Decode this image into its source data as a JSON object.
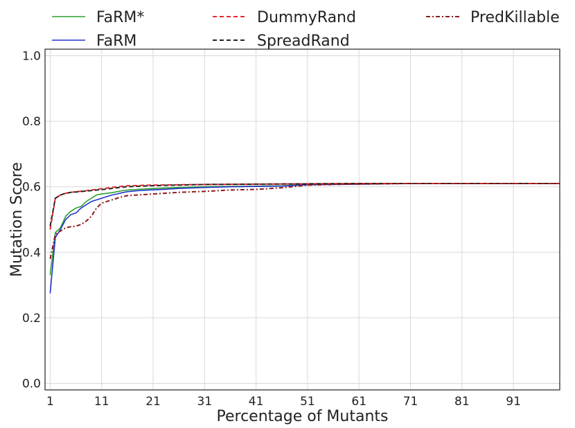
{
  "chart_data": {
    "type": "line",
    "xlabel": "Percentage of Mutants",
    "ylabel": "Mutation Score",
    "xlim": [
      0,
      100
    ],
    "ylim": [
      -0.02,
      1.02
    ],
    "x_ticks": [
      1,
      11,
      21,
      31,
      41,
      51,
      61,
      71,
      81,
      91
    ],
    "y_ticks": [
      0.0,
      0.2,
      0.4,
      0.6,
      0.8,
      1.0
    ],
    "x_tick_labels": [
      "1",
      "11",
      "21",
      "31",
      "41",
      "51",
      "61",
      "71",
      "81",
      "91"
    ],
    "y_tick_labels": [
      "0.0",
      "0.2",
      "0.4",
      "0.6",
      "0.8",
      "1.0"
    ],
    "grid": true,
    "legend_position": "top, outside plot (3 columns)",
    "series": [
      {
        "name": "FaRM*",
        "color": "#2ca02c",
        "style": "solid",
        "x": [
          1,
          2,
          3,
          4,
          5,
          6,
          7,
          8,
          9,
          10,
          11,
          12,
          13,
          14,
          15,
          16,
          18,
          20,
          23,
          26,
          31,
          36,
          41,
          46,
          51,
          56,
          61,
          71,
          81,
          91,
          100
        ],
        "y": [
          0.33,
          0.46,
          0.475,
          0.51,
          0.525,
          0.535,
          0.54,
          0.555,
          0.565,
          0.575,
          0.578,
          0.58,
          0.582,
          0.585,
          0.588,
          0.59,
          0.592,
          0.594,
          0.596,
          0.598,
          0.6,
          0.601,
          0.602,
          0.603,
          0.607,
          0.608,
          0.609,
          0.61,
          0.61,
          0.61,
          0.61
        ]
      },
      {
        "name": "FaRM",
        "color": "#2233cc",
        "style": "solid",
        "x": [
          1,
          2,
          3,
          4,
          5,
          6,
          7,
          8,
          9,
          10,
          11,
          12,
          13,
          14,
          15,
          16,
          18,
          20,
          23,
          26,
          31,
          36,
          41,
          46,
          51,
          56,
          61,
          71,
          81,
          91,
          100
        ],
        "y": [
          0.275,
          0.445,
          0.47,
          0.5,
          0.515,
          0.52,
          0.535,
          0.545,
          0.555,
          0.56,
          0.565,
          0.57,
          0.575,
          0.578,
          0.582,
          0.585,
          0.588,
          0.59,
          0.592,
          0.595,
          0.598,
          0.6,
          0.601,
          0.602,
          0.606,
          0.607,
          0.608,
          0.61,
          0.61,
          0.61,
          0.61
        ]
      },
      {
        "name": "DummyRand",
        "color": "#e8262a",
        "style": "dashed",
        "x": [
          1,
          2,
          3,
          4,
          5,
          6,
          8,
          10,
          12,
          14,
          16,
          20,
          25,
          31,
          41,
          51,
          61,
          71,
          81,
          91,
          100
        ],
        "y": [
          0.47,
          0.565,
          0.575,
          0.58,
          0.583,
          0.585,
          0.588,
          0.592,
          0.596,
          0.6,
          0.603,
          0.605,
          0.606,
          0.607,
          0.608,
          0.609,
          0.61,
          0.61,
          0.61,
          0.61,
          0.61
        ]
      },
      {
        "name": "SpreadRand",
        "color": "#222222",
        "style": "dashed",
        "x": [
          1,
          2,
          3,
          4,
          5,
          6,
          8,
          10,
          12,
          14,
          16,
          20,
          25,
          31,
          41,
          51,
          61,
          71,
          81,
          91,
          100
        ],
        "y": [
          0.48,
          0.565,
          0.575,
          0.58,
          0.583,
          0.584,
          0.587,
          0.59,
          0.593,
          0.597,
          0.6,
          0.603,
          0.605,
          0.607,
          0.608,
          0.609,
          0.61,
          0.61,
          0.61,
          0.61,
          0.61
        ]
      },
      {
        "name": "PredKillable",
        "color": "#8b1a1a",
        "style": "dashdot",
        "x": [
          1,
          2,
          3,
          4,
          5,
          6,
          7,
          8,
          9,
          10,
          11,
          12,
          13,
          14,
          15,
          16,
          18,
          20,
          23,
          26,
          31,
          36,
          41,
          46,
          51,
          56,
          61,
          71,
          81,
          91,
          100
        ],
        "y": [
          0.38,
          0.455,
          0.465,
          0.475,
          0.478,
          0.48,
          0.485,
          0.495,
          0.51,
          0.535,
          0.55,
          0.555,
          0.56,
          0.565,
          0.57,
          0.573,
          0.575,
          0.577,
          0.58,
          0.583,
          0.586,
          0.59,
          0.592,
          0.597,
          0.605,
          0.607,
          0.608,
          0.61,
          0.61,
          0.61,
          0.61
        ]
      }
    ]
  }
}
